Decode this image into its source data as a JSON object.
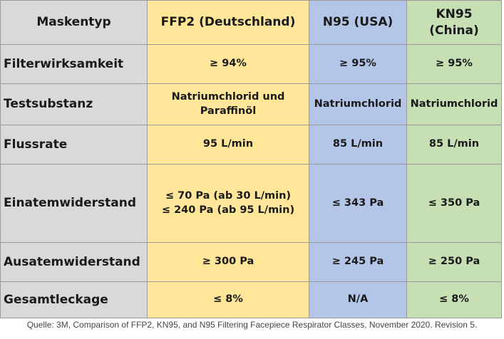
{
  "table": {
    "headers": [
      "Maskentyp",
      "FFP2 (Deutschland)",
      "N95 (USA)",
      "KN95 (China)"
    ],
    "rows": [
      {
        "label": "Filterwirksamkeit",
        "ffp2": [
          "≥ 94%"
        ],
        "n95": "≥ 95%",
        "kn95": "≥ 95%"
      },
      {
        "label": "Testsubstanz",
        "ffp2": [
          "Natriumchlorid und",
          "Paraffinöl"
        ],
        "n95": "Natriumchlorid",
        "kn95": "Natriumchlorid"
      },
      {
        "label": "Flussrate",
        "ffp2": [
          "95 L/min"
        ],
        "n95": "85 L/min",
        "kn95": "85 L/min"
      },
      {
        "label": "Einatemwiderstand",
        "ffp2": [
          "≤ 70 Pa (ab 30 L/min)",
          "≤ 240 Pa (ab 95 L/min)"
        ],
        "n95": "≤ 343 Pa",
        "kn95": "≤ 350 Pa"
      },
      {
        "label": "Ausatemwiderstand",
        "ffp2": [
          "≥ 300 Pa"
        ],
        "n95": "≥ 245 Pa",
        "kn95": "≥ 250 Pa"
      },
      {
        "label": "Gesamtleckage",
        "ffp2": [
          "≤ 8%"
        ],
        "n95": "N/A",
        "kn95": "≤ 8%"
      }
    ]
  },
  "caption": "Quelle: 3M, Comparison of FFP2, KN95, and N95 Filtering Facepiece Respirator Classes, November 2020. Revision 5.",
  "colors": {
    "label_column": "#d9d9d9",
    "ffp2_column": "#ffe699",
    "n95_column": "#b4c6e7",
    "kn95_column": "#c6e0b4",
    "border": "#9a9a9a"
  }
}
